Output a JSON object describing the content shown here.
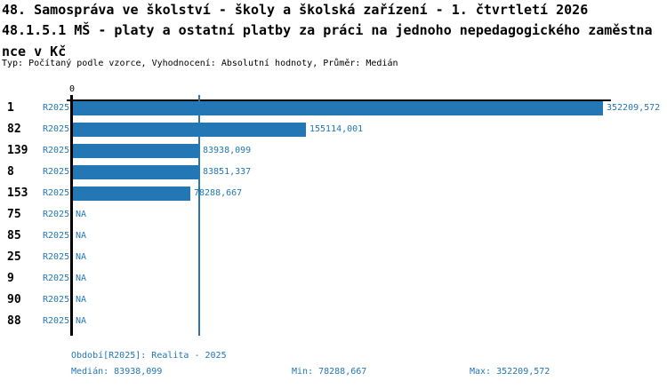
{
  "header": {
    "title_line1": "48. Samospráva ve školství - školy a školská zařízení - 1. čtvrtletí 2026",
    "title_line2": "48.1.5.1 MŠ - platy a ostatní platby za práci na jednoho nepedagogického zaměstna",
    "title_line3": "nce v Kč",
    "meta": "Typ: Počítaný podle vzorce, Vyhodnocení: Absolutní hodnoty, Průměr: Medián"
  },
  "colors": {
    "accent": "#2277b4",
    "axis": "#000000"
  },
  "chart_data": {
    "type": "bar",
    "orientation": "horizontal",
    "title": "48.1.5.1 MŠ - platy a ostatní platby za práci na jednoho nepedagogického zaměstnance v Kč",
    "categories": [
      "1",
      "82",
      "139",
      "8",
      "153",
      "75",
      "85",
      "25",
      "9",
      "90",
      "88"
    ],
    "series": [
      {
        "name": "R2025",
        "values": [
          352209.572,
          155114.001,
          83938.099,
          83851.337,
          78288.667,
          null,
          null,
          null,
          null,
          null,
          null
        ]
      }
    ],
    "value_labels": [
      "352209,572",
      "155114,001",
      "83938,099",
      "83851,337",
      "78288,667",
      "NA",
      "NA",
      "NA",
      "NA",
      "NA",
      "NA"
    ],
    "na_text": "NA",
    "origin_tick": "0",
    "median_value": 83938.099,
    "xlim": [
      0,
      360000
    ],
    "grid": "median-line-only",
    "legend_position": "none"
  },
  "footer": {
    "period_line": "Období[R2025]: Realita - 2025",
    "median": "Medián: 83938,099",
    "min": "Min: 78288,667",
    "max": "Max: 352209,572"
  }
}
